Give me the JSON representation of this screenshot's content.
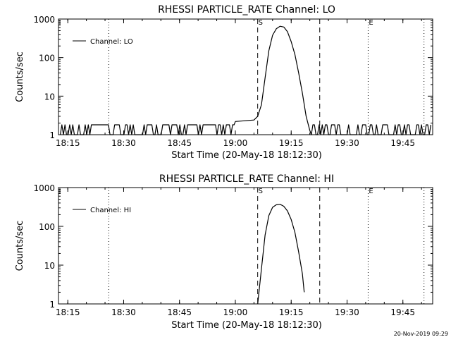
{
  "footer": {
    "timestamp": "20-Nov-2019 09:29"
  },
  "chart_data": [
    {
      "type": "line",
      "title": "RHESSI PARTICLE_RATE Channel: LO",
      "xlabel": "Start Time (20-May-18 18:12:30)",
      "ylabel": "Counts/sec",
      "y_scale": "log",
      "ylim": [
        1,
        1000
      ],
      "xlim": [
        "18:12:30",
        "19:53:00"
      ],
      "x_ticks": [
        "18:15",
        "18:30",
        "18:45",
        "19:00",
        "19:15",
        "19:30",
        "19:45"
      ],
      "y_ticks": [
        "1",
        "10",
        "100",
        "1000"
      ],
      "legend": {
        "position": "top-left",
        "entries": [
          "Channel: LO"
        ]
      },
      "dotted_lines": [
        "18:26:00",
        "19:35:40",
        "19:50:40"
      ],
      "dashed_lines": [
        "19:06:00",
        "19:22:40"
      ],
      "markers": [
        {
          "label": "S",
          "x": "19:06:00"
        },
        {
          "label": "E",
          "x": "19:35:40"
        }
      ],
      "series": [
        {
          "name": "Channel: LO",
          "points": [
            [
              "19:00:00",
              2.2
            ],
            [
              "19:05:00",
              2.4
            ],
            [
              "19:06:00",
              3
            ],
            [
              "19:07:00",
              6
            ],
            [
              "19:08:00",
              30
            ],
            [
              "19:09:00",
              150
            ],
            [
              "19:10:00",
              380
            ],
            [
              "19:11:00",
              560
            ],
            [
              "19:12:00",
              650
            ],
            [
              "19:13:00",
              620
            ],
            [
              "19:14:00",
              470
            ],
            [
              "19:15:00",
              260
            ],
            [
              "19:16:00",
              120
            ],
            [
              "19:17:00",
              40
            ],
            [
              "19:18:00",
              12
            ],
            [
              "19:19:00",
              3
            ],
            [
              "19:20:00",
              1.3
            ]
          ],
          "noise_baseline": 1,
          "noise_peak": 1.8
        }
      ]
    },
    {
      "type": "line",
      "title": "RHESSI PARTICLE_RATE Channel: HI",
      "xlabel": "Start Time (20-May-18 18:12:30)",
      "ylabel": "Counts/sec",
      "y_scale": "log",
      "ylim": [
        1,
        1000
      ],
      "xlim": [
        "18:12:30",
        "19:53:00"
      ],
      "x_ticks": [
        "18:15",
        "18:30",
        "18:45",
        "19:00",
        "19:15",
        "19:30",
        "19:45"
      ],
      "y_ticks": [
        "1",
        "10",
        "100",
        "1000"
      ],
      "legend": {
        "position": "top-left",
        "entries": [
          "Channel: HI"
        ]
      },
      "dotted_lines": [
        "18:26:00",
        "19:35:40",
        "19:50:40"
      ],
      "dashed_lines": [
        "19:06:00",
        "19:22:40"
      ],
      "markers": [
        {
          "label": "S",
          "x": "19:06:00"
        },
        {
          "label": "E",
          "x": "19:35:40"
        }
      ],
      "series": [
        {
          "name": "Channel: HI",
          "points": [
            [
              "19:06:00",
              1
            ],
            [
              "19:07:00",
              8
            ],
            [
              "19:08:00",
              60
            ],
            [
              "19:09:00",
              190
            ],
            [
              "19:10:00",
              310
            ],
            [
              "19:11:00",
              360
            ],
            [
              "19:12:00",
              370
            ],
            [
              "19:13:00",
              330
            ],
            [
              "19:14:00",
              250
            ],
            [
              "19:15:00",
              150
            ],
            [
              "19:16:00",
              70
            ],
            [
              "19:17:00",
              22
            ],
            [
              "19:18:00",
              6
            ],
            [
              "19:18:30",
              2
            ]
          ]
        }
      ]
    }
  ]
}
